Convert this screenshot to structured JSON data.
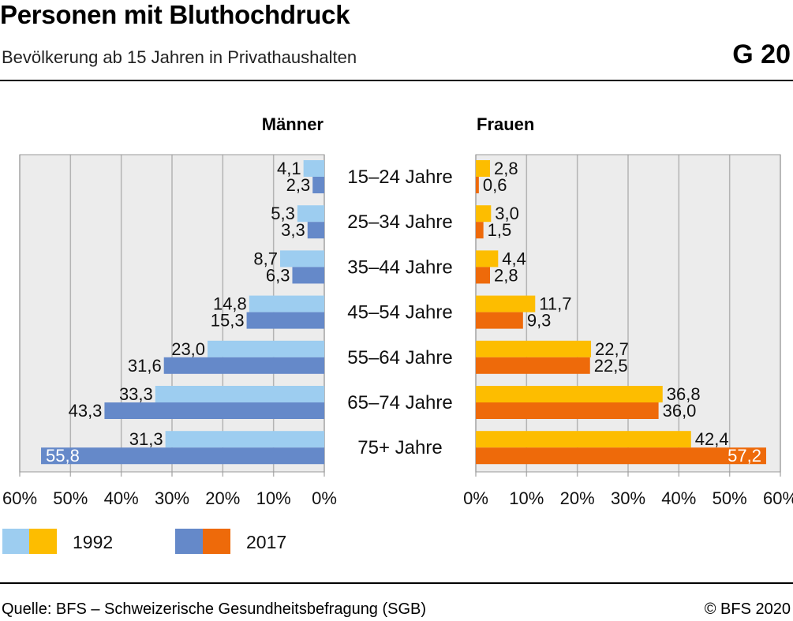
{
  "header": {
    "title": "Personen mit Bluthochdruck",
    "subtitle": "Bevölkerung ab 15 Jahren in Privathaushalten",
    "figure_no": "G 20"
  },
  "footer": {
    "source": "Quelle: BFS – Schweizerische Gesundheitsbefragung (SGB)",
    "copyright": "© BFS 2020"
  },
  "colors": {
    "men_1992": "#9dcdf0",
    "men_2017": "#6589c9",
    "women_1992": "#fdbd00",
    "women_2017": "#ee6a0a",
    "plot_bg": "#ececec",
    "grid": "#b4b4b4"
  },
  "chart_data": {
    "type": "bar",
    "orientation": "horizontal",
    "categories": [
      "15–24 Jahre",
      "25–34 Jahre",
      "35–44 Jahre",
      "45–54 Jahre",
      "55–64 Jahre",
      "65–74 Jahre",
      "75+ Jahre"
    ],
    "panels": [
      {
        "title": "Männer",
        "direction": "left",
        "series": [
          {
            "name": "1992",
            "values": [
              4.1,
              5.3,
              8.7,
              14.8,
              23.0,
              33.3,
              31.3
            ],
            "labels": [
              "4,1",
              "5,3",
              "8,7",
              "14,8",
              "23,0",
              "33,3",
              "31,3"
            ]
          },
          {
            "name": "2017",
            "values": [
              2.3,
              3.3,
              6.3,
              15.3,
              31.6,
              43.3,
              55.8
            ],
            "labels": [
              "2,3",
              "3,3",
              "6,3",
              "15,3",
              "31,6",
              "43,3",
              "55,8"
            ]
          }
        ],
        "xlim": [
          0,
          60
        ],
        "ticks": [
          "60%",
          "50%",
          "40%",
          "30%",
          "20%",
          "10%",
          "0%"
        ]
      },
      {
        "title": "Frauen",
        "direction": "right",
        "series": [
          {
            "name": "1992",
            "values": [
              2.8,
              3.0,
              4.4,
              11.7,
              22.7,
              36.8,
              42.4
            ],
            "labels": [
              "2,8",
              "3,0",
              "4,4",
              "11,7",
              "22,7",
              "36,8",
              "42,4"
            ]
          },
          {
            "name": "2017",
            "values": [
              0.6,
              1.5,
              2.8,
              9.3,
              22.5,
              36.0,
              57.2
            ],
            "labels": [
              "0,6",
              "1,5",
              "2,8",
              "9,3",
              "22,5",
              "36,0",
              "57,2"
            ]
          }
        ],
        "xlim": [
          0,
          60
        ],
        "ticks": [
          "0%",
          "10%",
          "20%",
          "30%",
          "40%",
          "50%",
          "60%"
        ]
      }
    ],
    "legend": {
      "position": "bottom-left",
      "items": [
        "1992",
        "2017"
      ]
    },
    "grid": true
  }
}
